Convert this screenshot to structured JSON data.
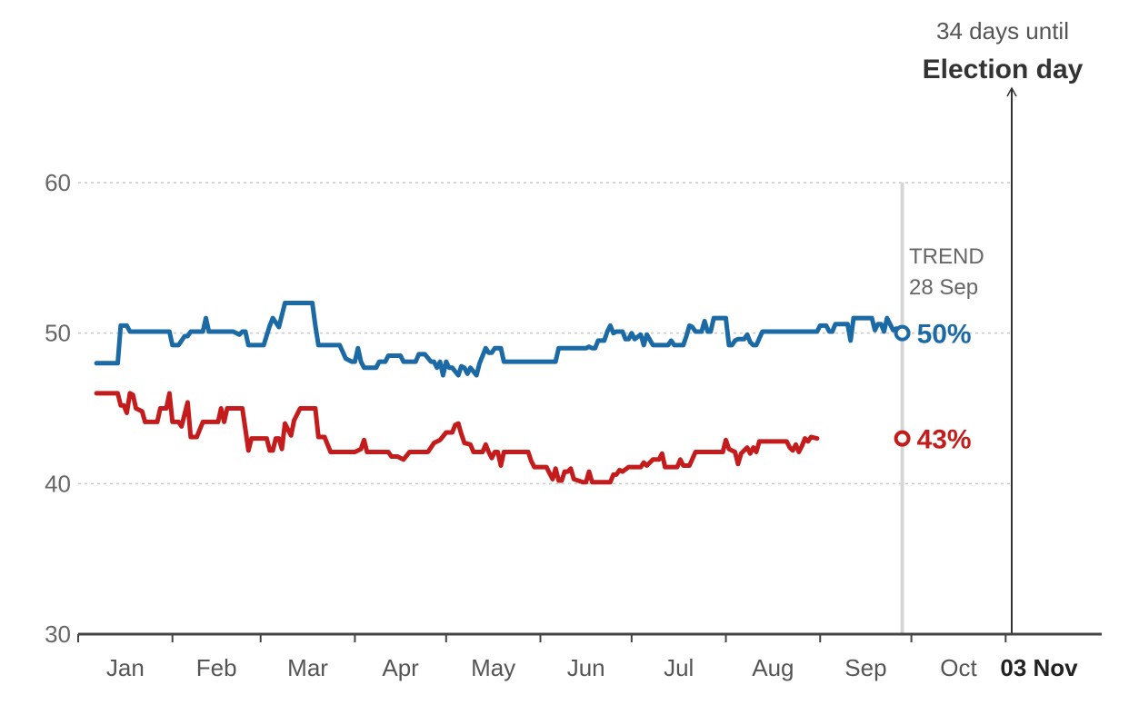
{
  "chart_data": {
    "type": "line",
    "title": "",
    "xlabel": "",
    "ylabel": "",
    "ylim": [
      30,
      60
    ],
    "yticks": [
      "30",
      "40",
      "50",
      "60"
    ],
    "months": [
      "Jan",
      "Feb",
      "Mar",
      "Apr",
      "May",
      "Jun",
      "Jul",
      "Aug",
      "Sep",
      "Oct"
    ],
    "election_label": "03 Nov",
    "countdown_line1": "34 days until",
    "countdown_line2": "Election day",
    "trend_line1": "TREND",
    "trend_line2": "28 Sep",
    "x_domain_days": [
      1,
      308
    ],
    "trend_day": 272,
    "election_day": 308,
    "series": [
      {
        "name": "blue",
        "color": "#1b6aa5",
        "end_label": "50%",
        "points": [
          [
            7,
            48
          ],
          [
            14,
            48
          ],
          [
            15,
            50.5
          ],
          [
            17,
            50.5
          ],
          [
            18,
            50.1
          ],
          [
            31,
            50.1
          ],
          [
            32,
            49.2
          ],
          [
            34,
            49.2
          ],
          [
            36,
            49.8
          ],
          [
            37,
            49.8
          ],
          [
            38,
            50.1
          ],
          [
            42,
            50.1
          ],
          [
            43,
            51
          ],
          [
            44,
            50.1
          ],
          [
            52,
            50.1
          ],
          [
            54,
            49.9
          ],
          [
            55,
            50.1
          ],
          [
            56,
            50.1
          ],
          [
            57,
            49.2
          ],
          [
            62,
            49.2
          ],
          [
            64,
            50.5
          ],
          [
            65,
            51
          ],
          [
            67,
            50.4
          ],
          [
            69,
            52
          ],
          [
            78,
            52
          ],
          [
            79,
            50.5
          ],
          [
            80,
            49.2
          ],
          [
            87,
            49.2
          ],
          [
            89,
            48.3
          ],
          [
            91,
            48.1
          ],
          [
            92,
            48.1
          ],
          [
            93,
            49
          ],
          [
            94,
            48.1
          ],
          [
            95,
            47.7
          ],
          [
            99,
            47.7
          ],
          [
            100,
            48.1
          ],
          [
            102,
            48.1
          ],
          [
            103,
            48.5
          ],
          [
            107,
            48.5
          ],
          [
            108,
            48.1
          ],
          [
            112,
            48.1
          ],
          [
            113,
            48.6
          ],
          [
            115,
            48.6
          ],
          [
            117,
            48.1
          ],
          [
            118,
            48.1
          ],
          [
            119,
            47.7
          ],
          [
            120,
            48.1
          ],
          [
            121,
            47.2
          ],
          [
            122,
            48.1
          ],
          [
            123,
            47.7
          ],
          [
            124,
            47.7
          ],
          [
            126,
            47.2
          ],
          [
            127,
            47.8
          ],
          [
            128,
            47.7
          ],
          [
            129,
            47.3
          ],
          [
            130,
            47.7
          ],
          [
            132,
            47.2
          ],
          [
            133,
            48
          ],
          [
            135,
            49
          ],
          [
            136,
            48.7
          ],
          [
            137,
            48.7
          ],
          [
            138,
            49
          ],
          [
            140,
            49
          ],
          [
            141,
            48.1
          ],
          [
            158,
            48.1
          ],
          [
            159,
            49
          ],
          [
            161,
            49
          ],
          [
            162,
            49
          ],
          [
            168,
            49
          ],
          [
            169,
            49.1
          ],
          [
            170,
            49
          ],
          [
            171,
            49
          ],
          [
            172,
            49.5
          ],
          [
            174,
            49.5
          ],
          [
            175,
            50.1
          ],
          [
            176,
            50.5
          ],
          [
            177,
            50
          ],
          [
            178,
            50.1
          ],
          [
            180,
            50.1
          ],
          [
            181,
            49.6
          ],
          [
            182,
            49.6
          ],
          [
            183,
            50
          ],
          [
            184,
            49.6
          ],
          [
            186,
            49.9
          ],
          [
            187,
            49.2
          ],
          [
            188,
            49.9
          ],
          [
            190,
            49.2
          ],
          [
            195,
            49.2
          ],
          [
            196,
            49.5
          ],
          [
            197,
            49.2
          ],
          [
            200,
            49.2
          ],
          [
            201,
            49.8
          ],
          [
            202,
            50.5
          ],
          [
            203,
            50.4
          ],
          [
            204,
            50.1
          ],
          [
            206,
            50.1
          ],
          [
            207,
            50.8
          ],
          [
            208,
            50.1
          ],
          [
            209,
            50.1
          ],
          [
            210,
            51
          ],
          [
            214,
            51
          ],
          [
            215,
            49.2
          ],
          [
            216,
            49.2
          ],
          [
            217,
            49.5
          ],
          [
            218,
            49.6
          ],
          [
            220,
            49.6
          ],
          [
            221,
            49.9
          ],
          [
            222,
            49.4
          ],
          [
            223,
            49.2
          ],
          [
            224,
            49.2
          ],
          [
            226,
            50.1
          ],
          [
            244,
            50.1
          ],
          [
            245,
            50.5
          ],
          [
            247,
            50.5
          ],
          [
            248,
            50.1
          ],
          [
            249,
            50.1
          ],
          [
            250,
            50.6
          ],
          [
            254,
            50.6
          ],
          [
            255,
            49.5
          ],
          [
            256,
            51
          ],
          [
            262,
            51
          ],
          [
            263,
            50.2
          ],
          [
            264,
            50.6
          ],
          [
            265,
            50.6
          ],
          [
            266,
            50.1
          ],
          [
            267,
            51
          ],
          [
            269,
            50.2
          ],
          [
            270,
            50.3
          ],
          [
            272,
            50
          ]
        ]
      },
      {
        "name": "red",
        "color": "#c41c1c",
        "end_label": "43%",
        "points": [
          [
            7,
            46
          ],
          [
            14,
            46
          ],
          [
            15,
            45.2
          ],
          [
            16,
            45.2
          ],
          [
            17,
            44.7
          ],
          [
            18,
            46
          ],
          [
            19,
            45.9
          ],
          [
            20,
            45
          ],
          [
            22,
            44.8
          ],
          [
            23,
            44.1
          ],
          [
            27,
            44.1
          ],
          [
            28,
            45
          ],
          [
            30,
            45
          ],
          [
            31,
            46
          ],
          [
            32,
            44.1
          ],
          [
            34,
            44.1
          ],
          [
            35,
            43.8
          ],
          [
            37,
            45.4
          ],
          [
            38,
            43.1
          ],
          [
            40,
            43.1
          ],
          [
            41,
            43.6
          ],
          [
            42,
            44.1
          ],
          [
            47,
            44.1
          ],
          [
            48,
            45
          ],
          [
            49,
            44.1
          ],
          [
            50,
            45
          ],
          [
            55,
            45
          ],
          [
            56,
            43.6
          ],
          [
            57,
            42.2
          ],
          [
            58,
            43
          ],
          [
            63,
            43
          ],
          [
            64,
            42.2
          ],
          [
            65,
            42.2
          ],
          [
            66,
            43
          ],
          [
            67,
            43
          ],
          [
            68,
            42.3
          ],
          [
            69,
            44
          ],
          [
            70,
            43.6
          ],
          [
            71,
            43.2
          ],
          [
            72,
            44.2
          ],
          [
            74,
            45
          ],
          [
            79,
            45
          ],
          [
            80,
            43.1
          ],
          [
            82,
            43.1
          ],
          [
            84,
            42.1
          ],
          [
            92,
            42.1
          ],
          [
            94,
            42.3
          ],
          [
            95,
            42.9
          ],
          [
            96,
            42.1
          ],
          [
            103,
            42.1
          ],
          [
            104,
            41.8
          ],
          [
            106,
            41.8
          ],
          [
            107,
            41.7
          ],
          [
            108,
            41.6
          ],
          [
            110,
            42.1
          ],
          [
            116,
            42.1
          ],
          [
            117,
            42.4
          ],
          [
            118,
            42.7
          ],
          [
            120,
            42.9
          ],
          [
            122,
            43.4
          ],
          [
            124,
            43.4
          ],
          [
            125,
            43.9
          ],
          [
            126,
            44
          ],
          [
            127,
            43.3
          ],
          [
            128,
            42.7
          ],
          [
            130,
            42.6
          ],
          [
            131,
            42.1
          ],
          [
            134,
            42.1
          ],
          [
            135,
            42.6
          ],
          [
            136,
            42.1
          ],
          [
            137,
            41.7
          ],
          [
            138,
            42.1
          ],
          [
            139,
            42.1
          ],
          [
            140,
            41.2
          ],
          [
            141,
            42.1
          ],
          [
            149,
            42.1
          ],
          [
            150,
            41.5
          ],
          [
            151,
            41.1
          ],
          [
            155,
            41.1
          ],
          [
            156,
            40.7
          ],
          [
            157,
            40.3
          ],
          [
            158,
            41
          ],
          [
            159,
            40.2
          ],
          [
            160,
            40.2
          ],
          [
            161,
            40.8
          ],
          [
            162,
            40.8
          ],
          [
            163,
            41
          ],
          [
            164,
            40.3
          ],
          [
            167,
            40.1
          ],
          [
            168,
            40.1
          ],
          [
            169,
            40.8
          ],
          [
            170,
            40.1
          ],
          [
            176,
            40.1
          ],
          [
            177,
            40.6
          ],
          [
            178,
            40.6
          ],
          [
            179,
            40.9
          ],
          [
            180,
            40.8
          ],
          [
            182,
            41.1
          ],
          [
            186,
            41.1
          ],
          [
            187,
            41.4
          ],
          [
            188,
            41.2
          ],
          [
            190,
            41.6
          ],
          [
            192,
            41.6
          ],
          [
            193,
            42
          ],
          [
            194,
            41.1
          ],
          [
            198,
            41.1
          ],
          [
            199,
            41.6
          ],
          [
            200,
            41.2
          ],
          [
            202,
            41.2
          ],
          [
            204,
            42.1
          ],
          [
            213,
            42.1
          ],
          [
            214,
            42.9
          ],
          [
            215,
            42.3
          ],
          [
            217,
            42.1
          ],
          [
            218,
            41.3
          ],
          [
            219,
            42
          ],
          [
            220,
            42.2
          ],
          [
            221,
            42.4
          ],
          [
            222,
            42
          ],
          [
            223,
            42.4
          ],
          [
            224,
            42.1
          ],
          [
            225,
            42.8
          ],
          [
            234,
            42.8
          ],
          [
            235,
            42.4
          ],
          [
            236,
            42.2
          ],
          [
            237,
            42.6
          ],
          [
            238,
            42.1
          ],
          [
            239,
            42.5
          ],
          [
            240,
            43
          ],
          [
            241,
            42.8
          ],
          [
            242,
            43.1
          ],
          [
            244,
            43
          ]
        ]
      }
    ]
  }
}
